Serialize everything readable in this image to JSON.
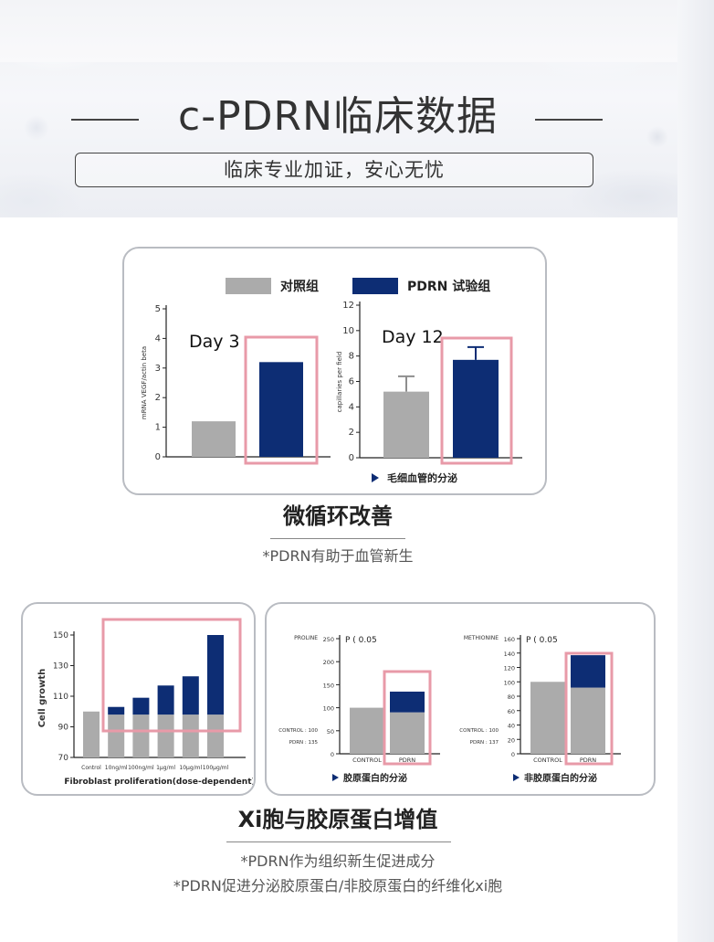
{
  "header": {
    "title": "c-PDRN临床数据",
    "subtitle": "临床专业加证，安心无忧"
  },
  "colors": {
    "control": "#ababab",
    "pdrn": "#0d2d74",
    "highlight": "#e89aa8",
    "border": "#b9bcc2"
  },
  "legend": {
    "control_label": "对照组",
    "pdrn_label": "PDRN 试验组"
  },
  "section1": {
    "title": "微循环改善",
    "note": "*PDRN有助于血管新生",
    "caption": "毛细血管的分泌"
  },
  "section2": {
    "title": "Xi胞与胶原蛋白增值",
    "note1": "*PDRN作为组织新生促进成分",
    "note2": "*PDRN促进分泌胶原蛋白/非胶原蛋白的纤维化xi胞"
  },
  "chart_data": [
    {
      "id": "day3",
      "type": "bar",
      "annotation": "Day 3",
      "ylabel": "mRNA VEGF/actin beta",
      "ylim": [
        0,
        5
      ],
      "yticks": [
        0,
        1,
        2,
        3,
        4,
        5
      ],
      "categories": [
        "对照组",
        "PDRN 试验组"
      ],
      "values": [
        1.2,
        3.2
      ]
    },
    {
      "id": "day12",
      "type": "bar",
      "annotation": "Day 12",
      "ylabel": "capillaries per field",
      "ylim": [
        0,
        12
      ],
      "yticks": [
        0,
        2,
        4,
        6,
        8,
        10,
        12
      ],
      "categories": [
        "对照组",
        "PDRN 试验组"
      ],
      "values": [
        5.2,
        7.7
      ],
      "errors": [
        1.2,
        1.0
      ],
      "caption": "毛细血管的分泌"
    },
    {
      "id": "fibroblast",
      "type": "bar",
      "ylabel": "Cell growth",
      "xlabel": "Fibroblast proliferation(dose-dependent)",
      "ylim": [
        70,
        150
      ],
      "yticks": [
        70,
        90,
        110,
        130,
        150
      ],
      "categories": [
        "Control",
        "10ng/ml",
        "100ng/ml",
        "1μg/ml",
        "10μg/ml",
        "100μg/ml"
      ],
      "values": [
        100,
        103,
        109,
        117,
        123,
        150
      ],
      "base": 98
    },
    {
      "id": "proline",
      "type": "bar",
      "ylabel": "PROLINE",
      "annotation": "P ( 0.05",
      "ylim": [
        0,
        250
      ],
      "yticks": [
        0,
        50,
        100,
        150,
        200,
        250
      ],
      "categories": [
        "CONTROL",
        "PDRN"
      ],
      "values": [
        100,
        135
      ],
      "pdrn_base": 90,
      "stats": [
        "CONTROL : 100",
        "PDRN : 135"
      ],
      "caption": "胶原蛋白的分泌"
    },
    {
      "id": "methionine",
      "type": "bar",
      "ylabel": "METHIONINE",
      "annotation": "P ( 0.05",
      "ylim": [
        0,
        160
      ],
      "yticks": [
        0,
        20,
        40,
        60,
        80,
        100,
        120,
        140,
        160
      ],
      "categories": [
        "CONTROL",
        "PDRN"
      ],
      "values": [
        100,
        137
      ],
      "pdrn_base": 92,
      "stats": [
        "CONTROL : 100",
        "PDRN : 137"
      ],
      "caption": "非胶原蛋白的分泌"
    }
  ]
}
